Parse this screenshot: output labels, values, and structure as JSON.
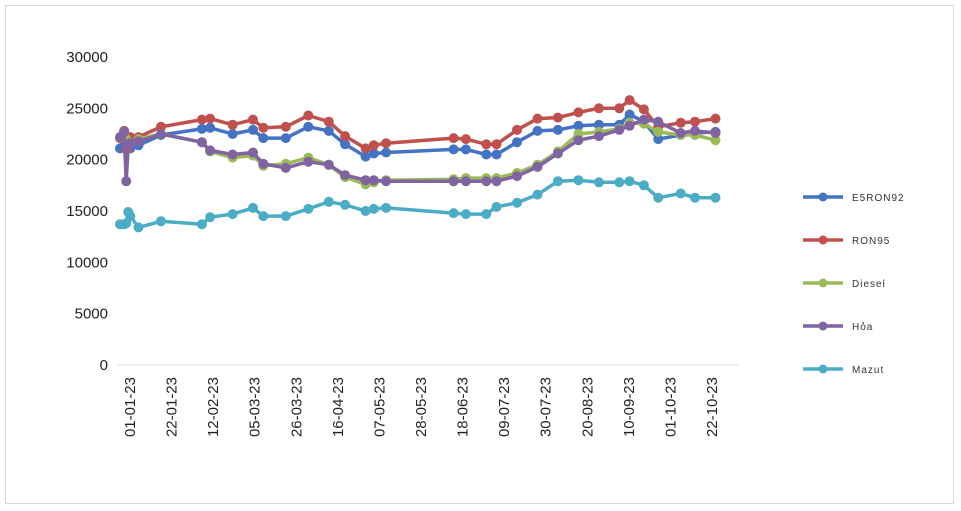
{
  "chart_data": {
    "type": "line",
    "title": "",
    "xlabel": "",
    "ylabel": "",
    "ylim": [
      0,
      30000
    ],
    "y_ticks": [
      "30000",
      "25000",
      "20000",
      "15000",
      "10000",
      "5000",
      "0"
    ],
    "x_tick_labels": [
      "01-01-23",
      "22-01-23",
      "12-02-23",
      "05-03-23",
      "26-03-23",
      "16-04-23",
      "07-05-23",
      "28-05-23",
      "18-06-23",
      "09-07-23",
      "30-07-23",
      "20-08-23",
      "10-09-23",
      "01-10-23",
      "22-10-23"
    ],
    "x": [
      "2023-01-01",
      "2023-01-03",
      "2023-01-04",
      "2023-01-05",
      "2023-01-06",
      "2023-01-10",
      "2023-01-21",
      "2023-02-10",
      "2023-02-14",
      "2023-02-25",
      "2023-03-07",
      "2023-03-12",
      "2023-03-23",
      "2023-04-03",
      "2023-04-13",
      "2023-04-21",
      "2023-05-01",
      "2023-05-05",
      "2023-05-11",
      "2023-06-13",
      "2023-06-19",
      "2023-06-29",
      "2023-07-04",
      "2023-07-14",
      "2023-07-24",
      "2023-08-03",
      "2023-08-13",
      "2023-08-23",
      "2023-09-02",
      "2023-09-07",
      "2023-09-14",
      "2023-09-21",
      "2023-10-02",
      "2023-10-09",
      "2023-10-19"
    ],
    "series": [
      {
        "name": "E5RON92",
        "color": "#4472c4",
        "values": [
          21100,
          22000,
          21600,
          21200,
          21100,
          21400,
          22400,
          23000,
          23100,
          22500,
          22900,
          22100,
          22100,
          23200,
          22800,
          21500,
          20300,
          20600,
          20700,
          21000,
          21000,
          20500,
          20500,
          21700,
          22800,
          22900,
          23300,
          23400,
          23400,
          24400,
          23700,
          22000,
          22400,
          22600,
          22700
        ]
      },
      {
        "name": "RON95",
        "color": "#c0504d",
        "values": [
          22100,
          22800,
          21000,
          21100,
          22200,
          22200,
          23200,
          23900,
          24000,
          23400,
          23900,
          23100,
          23200,
          24300,
          23700,
          22300,
          21100,
          21400,
          21600,
          22100,
          22000,
          21500,
          21500,
          22900,
          24000,
          24100,
          24600,
          25000,
          25000,
          25800,
          24900,
          23200,
          23600,
          23700,
          24000
        ]
      },
      {
        "name": "Diesel",
        "color": "#9bbb59",
        "values": [
          22200,
          22300,
          22000,
          21300,
          21600,
          22000,
          22500,
          21700,
          20800,
          20200,
          20400,
          19400,
          19600,
          20200,
          19500,
          18300,
          17600,
          17800,
          18000,
          18100,
          18200,
          18200,
          18200,
          18700,
          19500,
          20800,
          22500,
          22700,
          23000,
          23600,
          23500,
          22700,
          22400,
          22400,
          21900
        ]
      },
      {
        "name": "Hỏa",
        "color": "#8064a2",
        "values": [
          22200,
          22700,
          17900,
          21300,
          21600,
          21800,
          22500,
          21700,
          20900,
          20500,
          20700,
          19600,
          19200,
          19800,
          19500,
          18500,
          18000,
          18000,
          17900,
          17900,
          17900,
          17900,
          17900,
          18400,
          19300,
          20600,
          21900,
          22300,
          22900,
          23300,
          23900,
          23700,
          22600,
          22800,
          22600
        ]
      },
      {
        "name": "Mazut",
        "color": "#4bacc6",
        "values": [
          13700,
          13700,
          13800,
          14900,
          14500,
          13400,
          14000,
          13700,
          14400,
          14700,
          15300,
          14500,
          14500,
          15200,
          15900,
          15600,
          15000,
          15200,
          15300,
          14800,
          14700,
          14700,
          15400,
          15800,
          16600,
          17900,
          18000,
          17800,
          17800,
          17900,
          17500,
          16300,
          16700,
          16300,
          16300
        ]
      }
    ],
    "legend_position": "right",
    "grid": false
  }
}
